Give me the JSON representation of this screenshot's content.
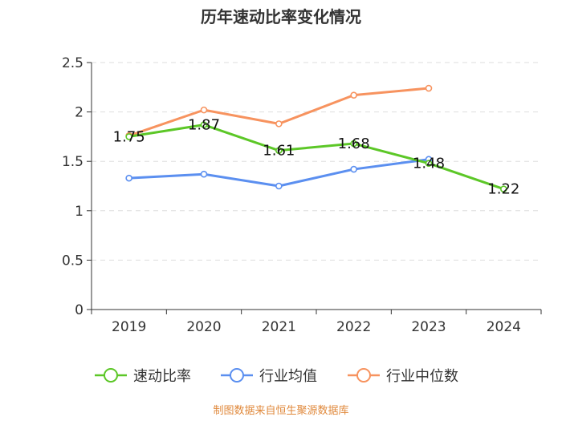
{
  "chart_data": {
    "type": "line",
    "title": "历年速动比率变化情况",
    "categories": [
      "2019",
      "2020",
      "2021",
      "2022",
      "2023",
      "2024"
    ],
    "ylim": [
      0,
      2.5
    ],
    "yticks": [
      0,
      0.5,
      1,
      1.5,
      2,
      2.5
    ],
    "ytick_labels": [
      "0",
      "0.5",
      "1",
      "1.5",
      "2",
      "2.5"
    ],
    "grid": true,
    "legend_position": "bottom",
    "series": [
      {
        "name": "速动比率",
        "color": "#5cc727",
        "values": [
          1.75,
          1.87,
          1.61,
          1.68,
          1.48,
          1.22
        ],
        "labels": [
          "1.75",
          "1.87",
          "1.61",
          "1.68",
          "1.48",
          "1.22"
        ]
      },
      {
        "name": "行业均值",
        "color": "#5b8ff0",
        "values": [
          1.33,
          1.37,
          1.25,
          1.42,
          1.52,
          null
        ]
      },
      {
        "name": "行业中位数",
        "color": "#f7935f",
        "values": [
          1.76,
          2.02,
          1.88,
          2.17,
          2.24,
          null
        ]
      }
    ],
    "source": "制图数据来自恒生聚源数据库"
  }
}
